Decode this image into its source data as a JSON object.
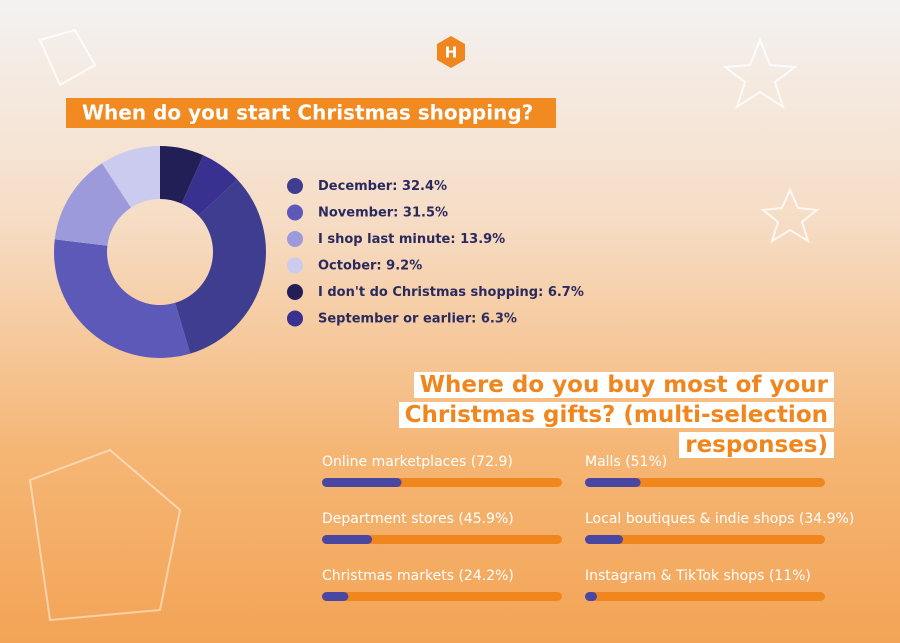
{
  "chart_data": [
    {
      "type": "donut",
      "title": "When do you start Christmas shopping?",
      "categories": [
        "December:",
        "November:",
        "I shop last minute:",
        "October:",
        "I don't do Christmas shopping:",
        "September or earlier:"
      ],
      "values": [
        32.4,
        31.5,
        13.9,
        9.2,
        6.7,
        6.3
      ],
      "value_labels": [
        "32.4%",
        "31.5%",
        "13.9%",
        "9.2%",
        "6.7%",
        "6.3%"
      ],
      "colors": [
        "#3f3d8f",
        "#5d59b8",
        "#9d9adc",
        "#cbcaef",
        "#221f57",
        "#38318f"
      ]
    },
    {
      "type": "bar",
      "title": "Where do you buy most of your Christmas gifts? (multi-selection responses)",
      "categories": [
        "Online marketplaces",
        "Malls",
        "Department stores",
        "Local boutiques & indie shops",
        "Christmas markets",
        "Instagram & TikTok shops"
      ],
      "values": [
        72.9,
        51,
        45.9,
        34.9,
        24.2,
        11
      ],
      "value_labels": [
        "(72.9)",
        "(51%)",
        "(45.9%)",
        "(34.9%)",
        "(24.2%)",
        "(11%)"
      ],
      "xlim": [
        0,
        220
      ],
      "color": "#4a47a3",
      "track_color": "#f0861e"
    }
  ]
}
